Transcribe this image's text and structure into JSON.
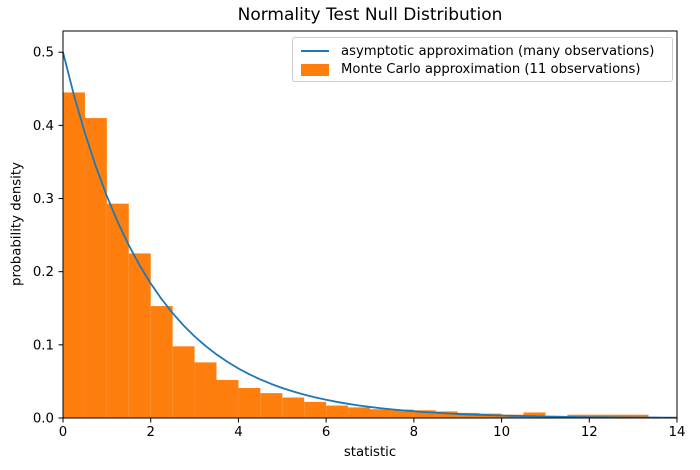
{
  "chart_data": {
    "type": "histogram+line",
    "title": "Normality Test Null Distribution",
    "xlabel": "statistic",
    "ylabel": "probability density",
    "xlim": [
      0,
      14
    ],
    "ylim": [
      0,
      0.529
    ],
    "xticks": [
      0,
      2,
      4,
      6,
      8,
      10,
      12,
      14
    ],
    "yticks": [
      0.0,
      0.1,
      0.2,
      0.3,
      0.4,
      0.5
    ],
    "grid": false,
    "legend_position": "upper right",
    "series": [
      {
        "name": "asymptotic approximation (many observations)",
        "type": "line",
        "color": "#1f77b4",
        "formula": "pdf(x) = 0.5 * exp(-x/2) (chi-squared, df=2)",
        "x_start": 0,
        "x_step": 0.25,
        "y": [
          0.5,
          0.44125,
          0.3894,
          0.34364,
          0.30327,
          0.26763,
          0.23618,
          0.20843,
          0.18394,
          0.16233,
          0.14325,
          0.12642,
          0.11157,
          0.09846,
          0.08689,
          0.07668,
          0.06767,
          0.05972,
          0.0527,
          0.04651,
          0.04104,
          0.03622,
          0.03196,
          0.02821,
          0.02489,
          0.02197,
          0.01939,
          0.01711,
          0.0151,
          0.01332,
          0.01176,
          0.01038,
          0.00916,
          0.00808,
          0.00713,
          0.00629,
          0.00555,
          0.0049,
          0.00433,
          0.00382,
          0.00337,
          0.00297,
          0.00262,
          0.00232,
          0.00204,
          0.0018,
          0.00159,
          0.0014,
          0.00124,
          0.00109,
          0.00097,
          0.00085,
          0.00075,
          0.00066,
          0.00059,
          0.00052,
          0.00046
        ]
      },
      {
        "name": "Monte Carlo approximation (11 observations)",
        "type": "histogram",
        "color": "#ff7f0e",
        "bin_edges": [
          0,
          0.5,
          1,
          1.5,
          2,
          2.5,
          3,
          3.5,
          4,
          4.5,
          5,
          5.5,
          6,
          6.5,
          7,
          7.5,
          8,
          8.5,
          9,
          9.5,
          10,
          10.5,
          11,
          11.5,
          12,
          12.5,
          13,
          13.35
        ],
        "densities": [
          0.445,
          0.41,
          0.293,
          0.225,
          0.153,
          0.098,
          0.076,
          0.052,
          0.041,
          0.034,
          0.028,
          0.022,
          0.017,
          0.0145,
          0.012,
          0.0115,
          0.0105,
          0.009,
          0.007,
          0.006,
          0.0045,
          0.0075,
          0.002,
          0.0045,
          0.0045,
          0.0045,
          0.0045
        ]
      }
    ],
    "axis_color": "#000000",
    "background": "#ffffff"
  }
}
